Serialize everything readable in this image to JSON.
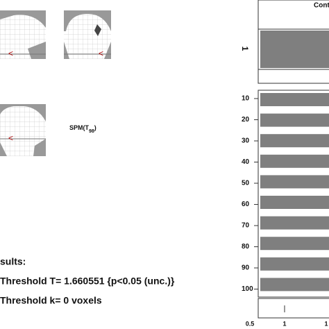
{
  "glass_brain": {
    "stat_prefix": "SPM(T",
    "stat_df": "98",
    "stat_suffix": ")"
  },
  "contrast": {
    "title": "Contr",
    "row_label": "1"
  },
  "design_matrix": {
    "row_labels": [
      "10",
      "20",
      "30",
      "40",
      "50",
      "60",
      "70",
      "80",
      "90",
      "100"
    ],
    "axis_labels": [
      "0.5",
      "1",
      "1"
    ]
  },
  "results": {
    "heading": "sults:",
    "line1": "Threshold T= 1.660551  {p<0.05 (unc.)}",
    "line2": "Threshold  k= 0 voxels"
  }
}
